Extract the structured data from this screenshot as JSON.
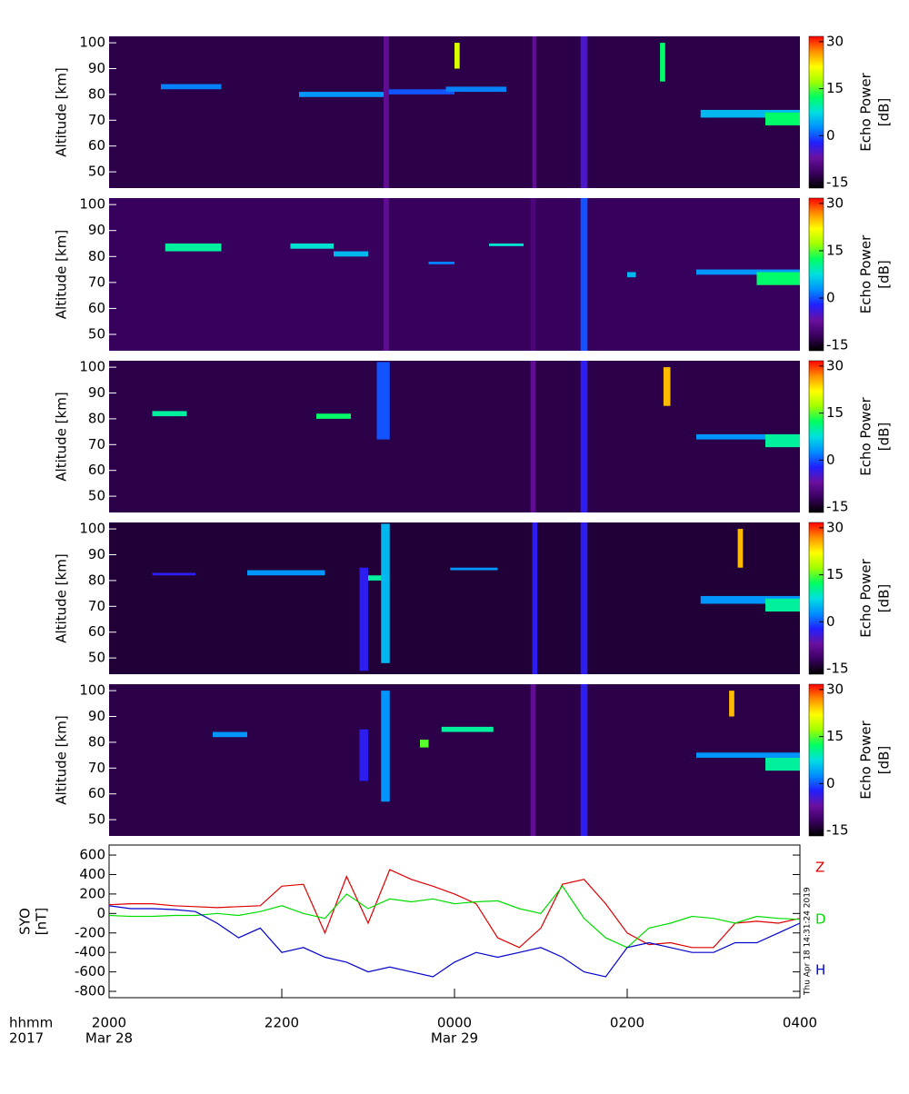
{
  "chart_data": [
    {
      "type": "heatmap",
      "y_label": "Altitude [km]",
      "colorbar_label": "Echo Power",
      "colorbar_unit": "[dB]",
      "xlim": [
        0,
        8
      ],
      "ylim": [
        43.7,
        102.5
      ],
      "yticks": [
        50,
        60,
        70,
        80,
        90,
        100
      ],
      "clim": [
        -16.7,
        31.7
      ],
      "cticks": [
        -15,
        0,
        15,
        30
      ],
      "colors": [
        "#000000",
        "#3a0060",
        "#6a10a0",
        "#2020ff",
        "#0090ff",
        "#00e0e0",
        "#00ff60",
        "#a0ff00",
        "#ffff00",
        "#ff9000",
        "#ff0000"
      ],
      "background": -13,
      "x_start": [
        0.6,
        2.2,
        3.2,
        3.9,
        6.85,
        7.6,
        3.18,
        4.9,
        5.46,
        4.0,
        6.38
      ],
      "x_end": [
        1.3,
        3.2,
        4.0,
        4.6,
        8,
        8,
        3.24,
        4.95,
        5.54,
        4.06,
        6.44
      ],
      "alt_low": [
        82,
        79,
        80,
        81,
        71,
        68,
        43.7,
        43.7,
        43.7,
        90,
        85
      ],
      "alt_high": [
        84,
        81,
        82,
        83,
        74,
        73,
        102.5,
        102.5,
        102.5,
        100,
        100
      ],
      "values": [
        2,
        3,
        0,
        2,
        5,
        12,
        -8,
        -8,
        -5,
        20,
        12
      ]
    },
    {
      "type": "heatmap",
      "y_label": "Altitude [km]",
      "colorbar_label": "Echo Power",
      "colorbar_unit": "[dB]",
      "xlim": [
        0,
        8
      ],
      "ylim": [
        43.7,
        102.5
      ],
      "yticks": [
        50,
        60,
        70,
        80,
        90,
        100
      ],
      "clim": [
        -16.7,
        31.7
      ],
      "cticks": [
        -15,
        0,
        15,
        30
      ],
      "colors": [
        "#000000",
        "#3a0060",
        "#6a10a0",
        "#2020ff",
        "#0090ff",
        "#00e0e0",
        "#00ff60",
        "#a0ff00",
        "#ffff00",
        "#ff9000",
        "#ff0000"
      ],
      "background": -12,
      "x_start": [
        0.65,
        2.1,
        2.6,
        3.7,
        4.4,
        6.0,
        6.8,
        7.5,
        3.18,
        5.46,
        4.88
      ],
      "x_end": [
        1.3,
        2.6,
        3.0,
        4.0,
        4.8,
        6.1,
        8,
        8,
        3.24,
        5.54,
        4.94
      ],
      "alt_low": [
        82,
        83,
        80,
        77,
        84,
        72,
        73,
        69,
        43.7,
        43.7,
        43.7
      ],
      "alt_high": [
        85,
        85,
        82,
        78,
        85,
        74,
        75,
        74,
        102.5,
        102.5,
        102.5
      ],
      "values": [
        10,
        8,
        5,
        2,
        8,
        5,
        3,
        12,
        -8,
        0,
        -10
      ]
    },
    {
      "type": "heatmap",
      "y_label": "Altitude [km]",
      "colorbar_label": "Echo Power",
      "colorbar_unit": "[dB]",
      "xlim": [
        0,
        8
      ],
      "ylim": [
        43.7,
        102.5
      ],
      "yticks": [
        50,
        60,
        70,
        80,
        90,
        100
      ],
      "clim": [
        -16.7,
        31.7
      ],
      "cticks": [
        -15,
        0,
        15,
        30
      ],
      "colors": [
        "#000000",
        "#3a0060",
        "#6a10a0",
        "#2020ff",
        "#0090ff",
        "#00e0e0",
        "#00ff60",
        "#a0ff00",
        "#ffff00",
        "#ff9000",
        "#ff0000"
      ],
      "background": -13,
      "x_start": [
        0.5,
        2.4,
        3.1,
        6.8,
        7.6,
        6.42,
        5.46,
        4.88
      ],
      "x_end": [
        0.9,
        2.8,
        3.25,
        8,
        8,
        6.5,
        5.54,
        4.94
      ],
      "alt_low": [
        81,
        80,
        72,
        72,
        69,
        85,
        43.7,
        43.7
      ],
      "alt_high": [
        83,
        82,
        102,
        74,
        74,
        100,
        102.5,
        102.5
      ],
      "values": [
        10,
        12,
        0,
        3,
        10,
        25,
        -3,
        -8
      ]
    },
    {
      "type": "heatmap",
      "y_label": "Altitude [km]",
      "colorbar_label": "Echo Power",
      "colorbar_unit": "[dB]",
      "xlim": [
        0,
        8
      ],
      "ylim": [
        43.7,
        102.5
      ],
      "yticks": [
        50,
        60,
        70,
        80,
        90,
        100
      ],
      "clim": [
        -16.7,
        31.7
      ],
      "cticks": [
        -15,
        0,
        15,
        30
      ],
      "colors": [
        "#000000",
        "#3a0060",
        "#6a10a0",
        "#2020ff",
        "#0090ff",
        "#00e0e0",
        "#00ff60",
        "#a0ff00",
        "#ffff00",
        "#ff9000",
        "#ff0000"
      ],
      "background": -14,
      "x_start": [
        0.5,
        1.6,
        2.95,
        3.95,
        3.15,
        2.9,
        4.9,
        5.46,
        6.85,
        7.6,
        7.28
      ],
      "x_end": [
        1.0,
        2.5,
        3.2,
        4.5,
        3.25,
        3.0,
        4.96,
        5.54,
        8,
        8,
        7.34
      ],
      "alt_low": [
        82,
        82,
        80,
        84,
        48,
        45,
        43.7,
        43.7,
        71,
        68,
        85
      ],
      "alt_high": [
        83,
        84,
        82,
        85,
        102,
        85,
        102.5,
        102.5,
        74,
        73,
        100
      ],
      "values": [
        -3,
        3,
        10,
        3,
        5,
        -3,
        -3,
        -3,
        3,
        10,
        25
      ]
    },
    {
      "type": "heatmap",
      "y_label": "Altitude [km]",
      "colorbar_label": "Echo Power",
      "colorbar_unit": "[dB]",
      "xlim": [
        0,
        8
      ],
      "ylim": [
        43.7,
        102.5
      ],
      "yticks": [
        50,
        60,
        70,
        80,
        90,
        100
      ],
      "clim": [
        -16.7,
        31.7
      ],
      "cticks": [
        -15,
        0,
        15,
        30
      ],
      "colors": [
        "#000000",
        "#3a0060",
        "#6a10a0",
        "#2020ff",
        "#0090ff",
        "#00e0e0",
        "#00ff60",
        "#a0ff00",
        "#ffff00",
        "#ff9000",
        "#ff0000"
      ],
      "background": -13,
      "x_start": [
        1.2,
        3.85,
        3.6,
        3.15,
        2.9,
        4.88,
        5.46,
        6.8,
        7.6,
        7.18
      ],
      "x_end": [
        1.6,
        4.45,
        3.7,
        3.25,
        3.0,
        4.94,
        5.54,
        8,
        8,
        7.24
      ],
      "alt_low": [
        82,
        84,
        78,
        57,
        65,
        43.7,
        43.7,
        74,
        69,
        90
      ],
      "alt_high": [
        84,
        86,
        81,
        100,
        85,
        102.5,
        102.5,
        76,
        74,
        100
      ],
      "values": [
        3,
        10,
        15,
        3,
        -3,
        -8,
        -3,
        3,
        10,
        25
      ]
    },
    {
      "type": "line",
      "y_label": "SYO",
      "y_unit": "[nT]",
      "x_label": "hhmm",
      "year": "2017",
      "timestamp": "Thu Apr 18 14:31:24 2019",
      "xlim": [
        0,
        8
      ],
      "ylim": [
        -865,
        703
      ],
      "yticks": [
        -800,
        -600,
        -400,
        -200,
        0,
        200,
        400,
        600
      ],
      "xticks": [
        {
          "value": 0,
          "label": "2000"
        },
        {
          "value": 2,
          "label": "2200"
        },
        {
          "value": 4,
          "label": "0000"
        },
        {
          "value": 6,
          "label": "0200"
        },
        {
          "value": 8,
          "label": "0400"
        }
      ],
      "date_labels": [
        {
          "value": 0,
          "label": "Mar 28"
        },
        {
          "value": 4,
          "label": "Mar 29"
        }
      ],
      "x": [
        0,
        0.25,
        0.5,
        0.75,
        1,
        1.25,
        1.5,
        1.75,
        2,
        2.25,
        2.5,
        2.75,
        3,
        3.25,
        3.5,
        3.75,
        4,
        4.25,
        4.5,
        4.75,
        5,
        5.25,
        5.5,
        5.75,
        6,
        6.25,
        6.5,
        6.75,
        7,
        7.25,
        7.5,
        7.75,
        8
      ],
      "series": [
        {
          "name": "Z",
          "color": "#dd0000",
          "values": [
            90,
            100,
            100,
            80,
            70,
            60,
            70,
            80,
            280,
            300,
            -200,
            380,
            -100,
            450,
            350,
            280,
            200,
            100,
            -250,
            -350,
            -150,
            300,
            350,
            100,
            -200,
            -320,
            -300,
            -350,
            -350,
            -100,
            -80,
            -100,
            -50
          ]
        },
        {
          "name": "D",
          "color": "#00dd00",
          "values": [
            -20,
            -30,
            -30,
            -20,
            -20,
            0,
            -20,
            20,
            80,
            0,
            -50,
            200,
            50,
            150,
            120,
            150,
            100,
            120,
            130,
            50,
            0,
            280,
            -50,
            -250,
            -350,
            -150,
            -100,
            -30,
            -50,
            -100,
            -30,
            -50,
            -60
          ]
        },
        {
          "name": "H",
          "color": "#0000cc",
          "values": [
            80,
            50,
            50,
            40,
            20,
            -100,
            -250,
            -150,
            -400,
            -350,
            -450,
            -500,
            -600,
            -550,
            -600,
            -650,
            -500,
            -400,
            -450,
            -400,
            -350,
            -450,
            -600,
            -650,
            -350,
            -300,
            -350,
            -400,
            -400,
            -300,
            -300,
            -200,
            -100
          ]
        }
      ]
    }
  ]
}
